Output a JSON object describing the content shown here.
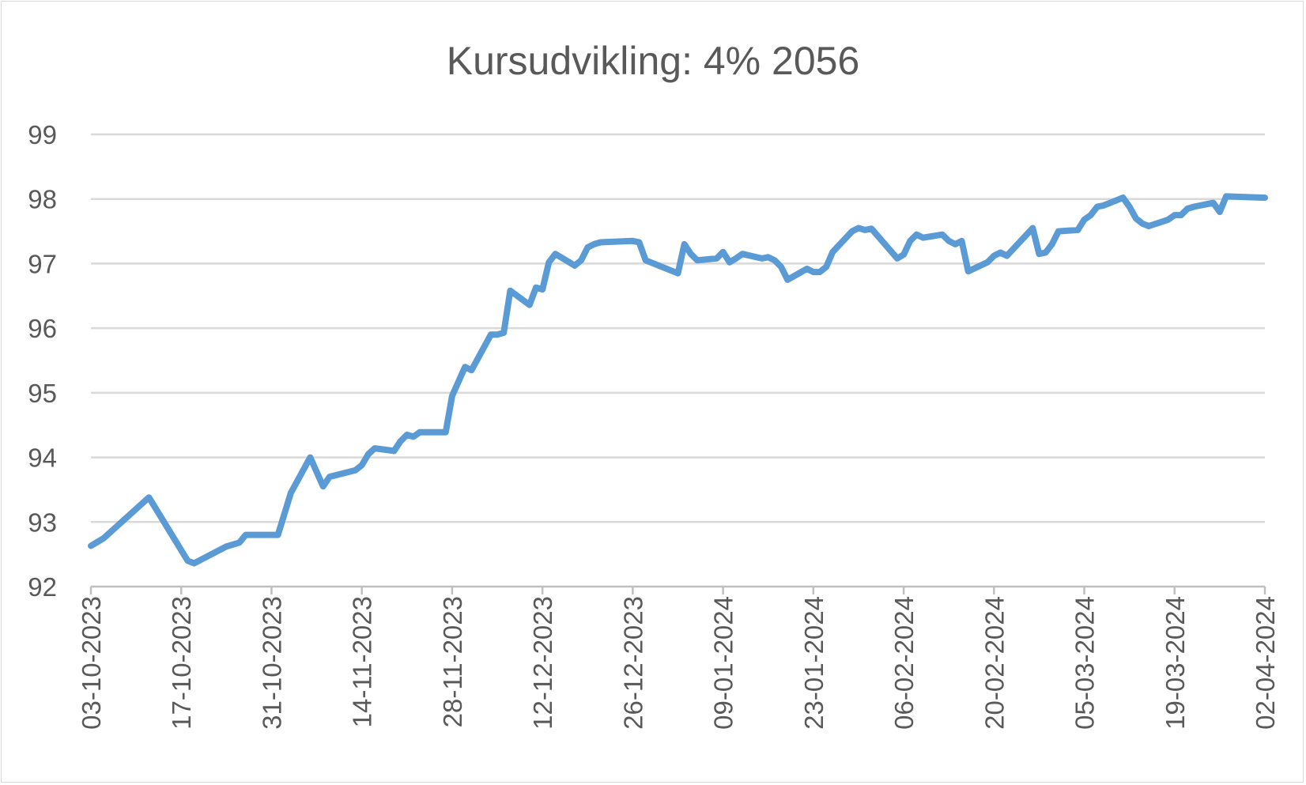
{
  "chart_data": {
    "type": "line",
    "title": "Kursudvikling: 4% 2056",
    "xlabel": "",
    "ylabel": "",
    "ylim": [
      92,
      99
    ],
    "yticks": [
      92,
      93,
      94,
      95,
      96,
      97,
      98,
      99
    ],
    "xlim": [
      "03-10-2023",
      "02-04-2024"
    ],
    "xticks": [
      "03-10-2023",
      "17-10-2023",
      "31-10-2023",
      "14-11-2023",
      "28-11-2023",
      "12-12-2023",
      "26-12-2023",
      "09-01-2024",
      "23-01-2024",
      "06-02-2024",
      "20-02-2024",
      "05-03-2024",
      "19-03-2024",
      "02-04-2024"
    ],
    "grid": true,
    "legend": "none",
    "color": "#5b9bd5",
    "x": [
      "03-10-2023",
      "05-10-2023",
      "12-10-2023",
      "18-10-2023",
      "19-10-2023",
      "24-10-2023",
      "26-10-2023",
      "27-10-2023",
      "01-11-2023",
      "03-11-2023",
      "06-11-2023",
      "08-11-2023",
      "09-11-2023",
      "13-11-2023",
      "14-11-2023",
      "15-11-2023",
      "16-11-2023",
      "19-11-2023",
      "20-11-2023",
      "21-11-2023",
      "22-11-2023",
      "23-11-2023",
      "24-11-2023",
      "27-11-2023",
      "28-11-2023",
      "30-11-2023",
      "01-12-2023",
      "04-12-2023",
      "05-12-2023",
      "06-12-2023",
      "07-12-2023",
      "10-12-2023",
      "11-12-2023",
      "12-12-2023",
      "13-12-2023",
      "14-12-2023",
      "17-12-2023",
      "18-12-2023",
      "19-12-2023",
      "20-12-2023",
      "21-12-2023",
      "26-12-2023",
      "27-12-2023",
      "28-12-2023",
      "02-01-2024",
      "03-01-2024",
      "04-01-2024",
      "05-01-2024",
      "08-01-2024",
      "09-01-2024",
      "10-01-2024",
      "11-01-2024",
      "12-01-2024",
      "15-01-2024",
      "16-01-2024",
      "17-01-2024",
      "18-01-2024",
      "19-01-2024",
      "22-01-2024",
      "23-01-2024",
      "24-01-2024",
      "25-01-2024",
      "26-01-2024",
      "29-01-2024",
      "30-01-2024",
      "31-01-2024",
      "01-02-2024",
      "05-02-2024",
      "06-02-2024",
      "07-02-2024",
      "08-02-2024",
      "09-02-2024",
      "12-02-2024",
      "13-02-2024",
      "14-02-2024",
      "15-02-2024",
      "16-02-2024",
      "19-02-2024",
      "20-02-2024",
      "21-02-2024",
      "22-02-2024",
      "26-02-2024",
      "27-02-2024",
      "28-02-2024",
      "29-02-2024",
      "01-03-2024",
      "04-03-2024",
      "05-03-2024",
      "06-03-2024",
      "07-03-2024",
      "08-03-2024",
      "11-03-2024",
      "12-03-2024",
      "13-03-2024",
      "14-03-2024",
      "15-03-2024",
      "18-03-2024",
      "19-03-2024",
      "20-03-2024",
      "21-03-2024",
      "22-03-2024",
      "25-03-2024",
      "26-03-2024",
      "27-03-2024",
      "02-04-2024"
    ],
    "series": [
      {
        "values": [
          92.63,
          92.75,
          93.38,
          92.4,
          92.36,
          92.62,
          92.68,
          92.8,
          92.8,
          93.45,
          94.0,
          93.55,
          93.7,
          93.8,
          93.88,
          94.05,
          94.14,
          94.1,
          94.25,
          94.35,
          94.32,
          94.39,
          94.39,
          94.39,
          94.95,
          95.4,
          95.35,
          95.9,
          95.9,
          95.93,
          96.58,
          96.36,
          96.63,
          96.6,
          97.02,
          97.15,
          96.97,
          97.05,
          97.25,
          97.3,
          97.33,
          97.35,
          97.33,
          97.05,
          96.85,
          97.3,
          97.15,
          97.05,
          97.08,
          97.18,
          97.02,
          97.08,
          97.15,
          97.08,
          97.1,
          97.05,
          96.95,
          96.75,
          96.92,
          96.87,
          96.87,
          96.95,
          97.18,
          97.5,
          97.55,
          97.52,
          97.54,
          97.08,
          97.14,
          97.35,
          97.45,
          97.4,
          97.45,
          97.35,
          97.3,
          97.35,
          96.88,
          97.02,
          97.12,
          97.17,
          97.12,
          97.55,
          97.15,
          97.17,
          97.3,
          97.5,
          97.52,
          97.68,
          97.75,
          97.88,
          97.9,
          98.02,
          97.88,
          97.7,
          97.62,
          97.58,
          97.68,
          97.75,
          97.75,
          97.85,
          97.88,
          97.94,
          97.8,
          98.04,
          98.02
        ]
      }
    ]
  }
}
